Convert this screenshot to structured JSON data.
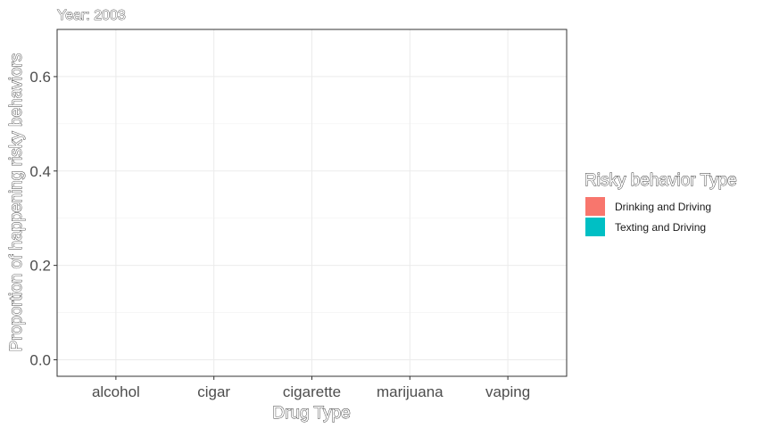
{
  "chart_data": {
    "type": "bar",
    "title": "Year: 2003",
    "xlabel": "Drug Type",
    "ylabel": "Proportion of happening risky behaviors",
    "categories": [
      "alcohol",
      "cigar",
      "cigarette",
      "marijuana",
      "vaping"
    ],
    "ylim": [
      -0.035,
      0.7
    ],
    "yticks": [
      0.0,
      0.2,
      0.4,
      0.6
    ],
    "yticks_labels": [
      "0.0",
      "0.2",
      "0.4",
      "0.6"
    ],
    "grid": true,
    "legend": {
      "title": "Risky behavior Type",
      "position": "right",
      "entries": [
        {
          "label": "Drinking and Driving",
          "color": "#F8766D"
        },
        {
          "label": "Texting and Driving",
          "color": "#00BFC4"
        }
      ]
    },
    "series": [
      {
        "name": "Drinking and Driving",
        "values": [
          0,
          0,
          0,
          0,
          0
        ]
      },
      {
        "name": "Texting and Driving",
        "values": [
          0,
          0,
          0,
          0,
          0
        ]
      }
    ]
  }
}
